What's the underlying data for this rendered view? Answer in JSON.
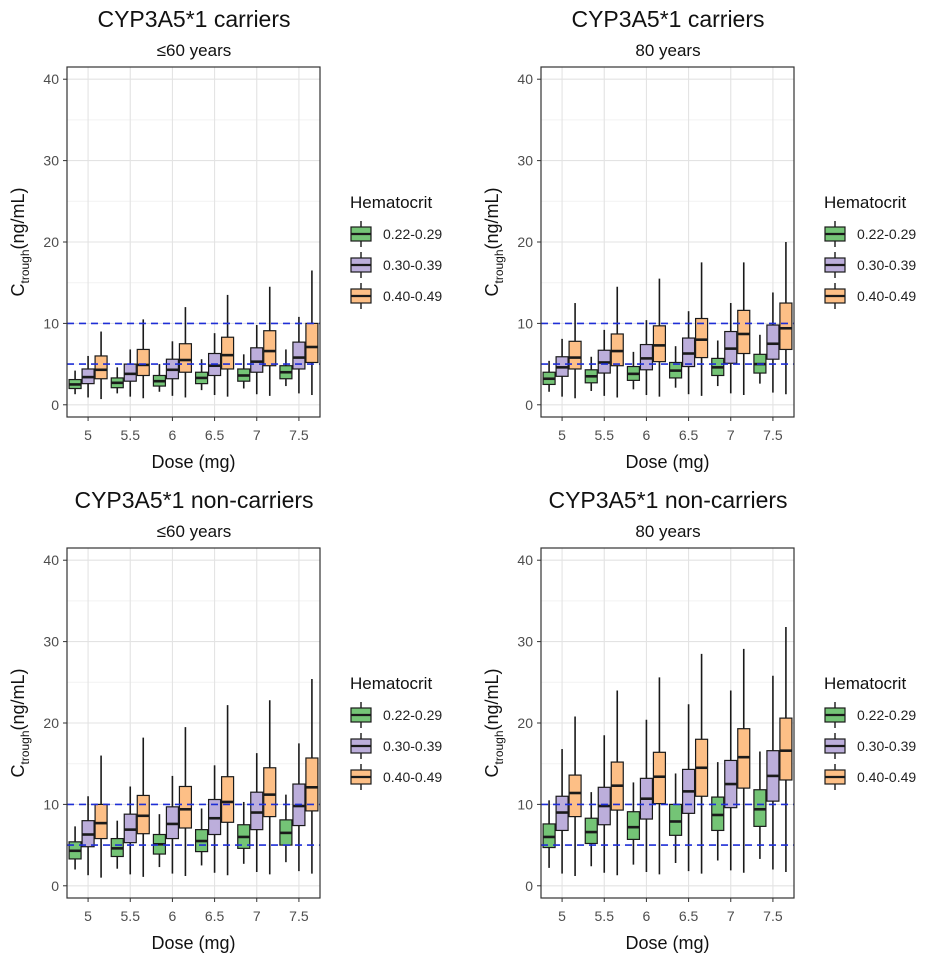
{
  "chart_data": [
    {
      "type": "boxplot",
      "title": "CYP3A5*1 carriers",
      "subtitle": "≤60 years",
      "xlabel": "Dose (mg)",
      "ylabel": "C",
      "ylabel_sub": "trough",
      "ylabel_rest": "(ng/mL)",
      "categories": [
        "5",
        "5.5",
        "6",
        "6.5",
        "7",
        "7.5"
      ],
      "ylim": [
        -1.5,
        41.5
      ],
      "yticks": [
        "0",
        "10",
        "20",
        "30",
        "40"
      ],
      "hlines": [
        5,
        10
      ],
      "legend_title": "Hematocrit",
      "series": [
        {
          "name": "0.22-0.29",
          "color": "#74c476",
          "boxes": [
            [
              1.3,
              2,
              2.5,
              3.1,
              4.2
            ],
            [
              1.4,
              2.1,
              2.7,
              3.3,
              4.6
            ],
            [
              1.6,
              2.3,
              2.9,
              3.6,
              5
            ],
            [
              1.8,
              2.6,
              3.3,
              4,
              5.6
            ],
            [
              2,
              2.9,
              3.6,
              4.4,
              6.2
            ],
            [
              2.3,
              3.2,
              4,
              4.8,
              6.8
            ]
          ]
        },
        {
          "name": "0.30-0.39",
          "color": "#bcaedb",
          "boxes": [
            [
              0.9,
              2.6,
              3.4,
              4.4,
              6
            ],
            [
              1,
              2.9,
              3.8,
              5,
              6.8
            ],
            [
              1.1,
              3.2,
              4.3,
              5.6,
              7.8
            ],
            [
              1.2,
              3.6,
              4.8,
              6.3,
              8.8
            ],
            [
              1.3,
              4,
              5.3,
              7,
              9.8
            ],
            [
              1.4,
              4.4,
              5.8,
              7.7,
              10.8
            ]
          ]
        },
        {
          "name": "0.40-0.49",
          "color": "#fdbf86",
          "boxes": [
            [
              0.7,
              3.2,
              4.3,
              6,
              9
            ],
            [
              0.8,
              3.6,
              4.9,
              6.8,
              10.5
            ],
            [
              0.9,
              4,
              5.5,
              7.5,
              12
            ],
            [
              1,
              4.4,
              6.1,
              8.3,
              13.5
            ],
            [
              1.1,
              4.8,
              6.6,
              9.1,
              14.5
            ],
            [
              1.2,
              5.2,
              7.1,
              10,
              16.5
            ]
          ]
        }
      ]
    },
    {
      "type": "boxplot",
      "title": "CYP3A5*1 carriers",
      "subtitle": "80 years",
      "xlabel": "Dose (mg)",
      "ylabel": "C",
      "ylabel_sub": "trough",
      "ylabel_rest": "(ng/mL)",
      "categories": [
        "5",
        "5.5",
        "6",
        "6.5",
        "7",
        "7.5"
      ],
      "ylim": [
        -1.5,
        41.5
      ],
      "yticks": [
        "0",
        "10",
        "20",
        "30",
        "40"
      ],
      "hlines": [
        5,
        10
      ],
      "legend_title": "Hematocrit",
      "series": [
        {
          "name": "0.22-0.29",
          "color": "#74c476",
          "boxes": [
            [
              1.6,
              2.5,
              3.2,
              4,
              5.4
            ],
            [
              1.7,
              2.7,
              3.5,
              4.3,
              5.9
            ],
            [
              1.9,
              3,
              3.8,
              4.7,
              6.5
            ],
            [
              2.1,
              3.3,
              4.2,
              5.2,
              7.2
            ],
            [
              2.3,
              3.6,
              4.6,
              5.7,
              7.9
            ],
            [
              2.6,
              3.9,
              5,
              6.2,
              8.6
            ]
          ]
        },
        {
          "name": "0.30-0.39",
          "color": "#bcaedb",
          "boxes": [
            [
              1,
              3.5,
              4.6,
              5.9,
              8.1
            ],
            [
              1.1,
              3.9,
              5.2,
              6.7,
              9.2
            ],
            [
              1.2,
              4.3,
              5.7,
              7.4,
              10.4
            ],
            [
              1.3,
              4.7,
              6.3,
              8.2,
              11.5
            ],
            [
              1.4,
              5.1,
              6.9,
              9,
              12.5
            ],
            [
              1.5,
              5.6,
              7.5,
              9.8,
              13.8
            ]
          ]
        },
        {
          "name": "0.40-0.49",
          "color": "#fdbf86",
          "boxes": [
            [
              0.8,
              4.4,
              5.8,
              7.8,
              12.5
            ],
            [
              0.9,
              4.8,
              6.6,
              8.7,
              14.5
            ],
            [
              1,
              5.3,
              7.3,
              9.7,
              15.5
            ],
            [
              1.1,
              5.8,
              8,
              10.6,
              17.5
            ],
            [
              1.2,
              6.3,
              8.7,
              11.6,
              17.5
            ],
            [
              1.3,
              6.8,
              9.4,
              12.5,
              20
            ]
          ]
        }
      ]
    },
    {
      "type": "boxplot",
      "title": "CYP3A5*1 non-carriers",
      "subtitle": "≤60 years",
      "xlabel": "Dose (mg)",
      "ylabel": "C",
      "ylabel_sub": "trough",
      "ylabel_rest": "(ng/mL)",
      "categories": [
        "5",
        "5.5",
        "6",
        "6.5",
        "7",
        "7.5"
      ],
      "ylim": [
        -1.5,
        41.5
      ],
      "yticks": [
        "0",
        "10",
        "20",
        "30",
        "40"
      ],
      "hlines": [
        5,
        10
      ],
      "legend_title": "Hematocrit",
      "series": [
        {
          "name": "0.22-0.29",
          "color": "#74c476",
          "boxes": [
            [
              2,
              3.3,
              4.3,
              5.4,
              7.3
            ],
            [
              2.1,
              3.6,
              4.6,
              5.8,
              8
            ],
            [
              2.3,
              3.9,
              5.1,
              6.3,
              8.8
            ],
            [
              2.5,
              4.2,
              5.5,
              6.9,
              9.5
            ],
            [
              2.7,
              4.6,
              6,
              7.5,
              10.3
            ],
            [
              2.9,
              5,
              6.5,
              8.1,
              11.2
            ]
          ]
        },
        {
          "name": "0.30-0.39",
          "color": "#bcaedb",
          "boxes": [
            [
              1.3,
              4.8,
              6.3,
              8,
              11
            ],
            [
              1.4,
              5.3,
              6.9,
              8.8,
              12.2
            ],
            [
              1.5,
              5.8,
              7.6,
              9.7,
              13.5
            ],
            [
              1.6,
              6.3,
              8.3,
              10.6,
              14.8
            ],
            [
              1.7,
              6.9,
              9,
              11.5,
              16.3
            ],
            [
              1.8,
              7.4,
              9.8,
              12.5,
              17.5
            ]
          ]
        },
        {
          "name": "0.40-0.49",
          "color": "#fdbf86",
          "boxes": [
            [
              1,
              5.8,
              7.7,
              10,
              16
            ],
            [
              1.1,
              6.4,
              8.6,
              11.1,
              18.2
            ],
            [
              1.2,
              7.1,
              9.4,
              12.2,
              19.5
            ],
            [
              1.3,
              7.8,
              10.3,
              13.4,
              22.2
            ],
            [
              1.4,
              8.5,
              11.2,
              14.5,
              22.8
            ],
            [
              1.5,
              9.2,
              12.1,
              15.7,
              25.4
            ]
          ]
        }
      ]
    },
    {
      "type": "boxplot",
      "title": "CYP3A5*1 non-carriers",
      "subtitle": "80 years",
      "xlabel": "Dose (mg)",
      "ylabel": "C",
      "ylabel_sub": "trough",
      "ylabel_rest": "(ng/mL)",
      "categories": [
        "5",
        "5.5",
        "6",
        "6.5",
        "7",
        "7.5"
      ],
      "ylim": [
        -1.5,
        41.5
      ],
      "yticks": [
        "0",
        "10",
        "20",
        "30",
        "40"
      ],
      "hlines": [
        5,
        10
      ],
      "legend_title": "Hematocrit",
      "series": [
        {
          "name": "0.22-0.29",
          "color": "#74c476",
          "boxes": [
            [
              2.2,
              4.7,
              6,
              7.6,
              10.5
            ],
            [
              2.4,
              5.2,
              6.6,
              8.3,
              11.5
            ],
            [
              2.6,
              5.7,
              7.2,
              9.1,
              12.7
            ],
            [
              2.8,
              6.2,
              7.9,
              10,
              13.8
            ],
            [
              3.1,
              6.8,
              8.7,
              10.9,
              15.2
            ],
            [
              3.3,
              7.3,
              9.4,
              11.8,
              16.5
            ]
          ]
        },
        {
          "name": "0.30-0.39",
          "color": "#bcaedb",
          "boxes": [
            [
              1.5,
              6.8,
              9,
              11,
              16.8
            ],
            [
              1.6,
              7.5,
              9.8,
              12.1,
              18.5
            ],
            [
              1.7,
              8.2,
              10.7,
              13.2,
              20.4
            ],
            [
              1.8,
              8.9,
              11.6,
              14.3,
              22.3
            ],
            [
              1.9,
              9.6,
              12.5,
              15.4,
              24
            ],
            [
              2,
              10.4,
              13.5,
              16.6,
              25.8
            ]
          ]
        },
        {
          "name": "0.40-0.49",
          "color": "#fdbf86",
          "boxes": [
            [
              1.2,
              8.5,
              11.4,
              13.6,
              20.8
            ],
            [
              1.3,
              9.3,
              12.3,
              15.2,
              24
            ],
            [
              1.4,
              10.1,
              13.4,
              16.4,
              25.6
            ],
            [
              1.5,
              11,
              14.5,
              18,
              28.5
            ],
            [
              1.6,
              12,
              15.8,
              19.3,
              29.1
            ],
            [
              1.7,
              13,
              16.6,
              20.6,
              31.8
            ]
          ]
        }
      ]
    }
  ]
}
